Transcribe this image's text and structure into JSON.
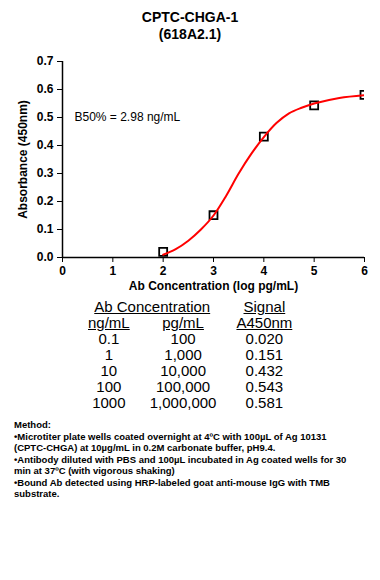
{
  "chart_data": {
    "type": "scatter",
    "title": "CPTC-CHGA-1",
    "subtitle": "(618A2.1)",
    "x_label": "Ab Concentration (log pg/mL)",
    "y_label": "Absorbance (450nm)",
    "annotation": "B50% = 2.98 ng/mL",
    "series": [
      {
        "type": "scatter",
        "marker": "square",
        "color": "#000000",
        "x": [
          2,
          3,
          4,
          5,
          6
        ],
        "values": [
          0.02,
          0.151,
          0.432,
          0.543,
          0.581
        ]
      },
      {
        "type": "line",
        "line_style": "solid",
        "color": "#ff0000",
        "x": [
          2,
          2.25,
          2.5,
          2.75,
          3,
          3.25,
          3.5,
          3.75,
          4,
          4.25,
          4.5,
          4.75,
          5,
          5.5,
          6
        ],
        "values": [
          0.01,
          0.03,
          0.06,
          0.1,
          0.15,
          0.22,
          0.3,
          0.37,
          0.43,
          0.48,
          0.515,
          0.535,
          0.55,
          0.57,
          0.58
        ]
      }
    ],
    "xlim": [
      0,
      6
    ],
    "xticks": [
      0,
      1,
      2,
      3,
      4,
      5,
      6
    ],
    "ylim": [
      0,
      0.7
    ],
    "yticks": [
      {
        "value": 0,
        "label": "0.0"
      },
      0.1,
      0.2,
      0.3,
      0.4,
      0.5,
      0.6,
      0.7
    ],
    "grid": false
  },
  "table": {
    "header": [
      [
        "Ab Concentration",
        "Signal"
      ],
      [
        "ng/mL",
        "pg/mL",
        "A450nm"
      ]
    ],
    "rows": [
      [
        "0.1",
        "100",
        "0.020"
      ],
      [
        "1",
        "1,000",
        "0.151"
      ],
      [
        "10",
        "10,000",
        "0.432"
      ],
      [
        "100",
        "100,000",
        "0.543"
      ],
      [
        "1000",
        "1,000,000",
        "0.581"
      ]
    ]
  },
  "method": {
    "heading": "Method:",
    "items": [
      "Microtiter plate wells coated overnight at 4ºC  with 100µL of Ag 10131 (CPTC-CHGA) at 10µg/mL in 0.2M carbonate buffer, pH9.4.",
      "Antibody diluted with PBS and 100µL incubated in Ag coated wells for 30 min at 37ºC (with vigorous shaking)",
      "Bound Ab detected using HRP-labeled goat anti-mouse IgG with TMB substrate."
    ]
  }
}
